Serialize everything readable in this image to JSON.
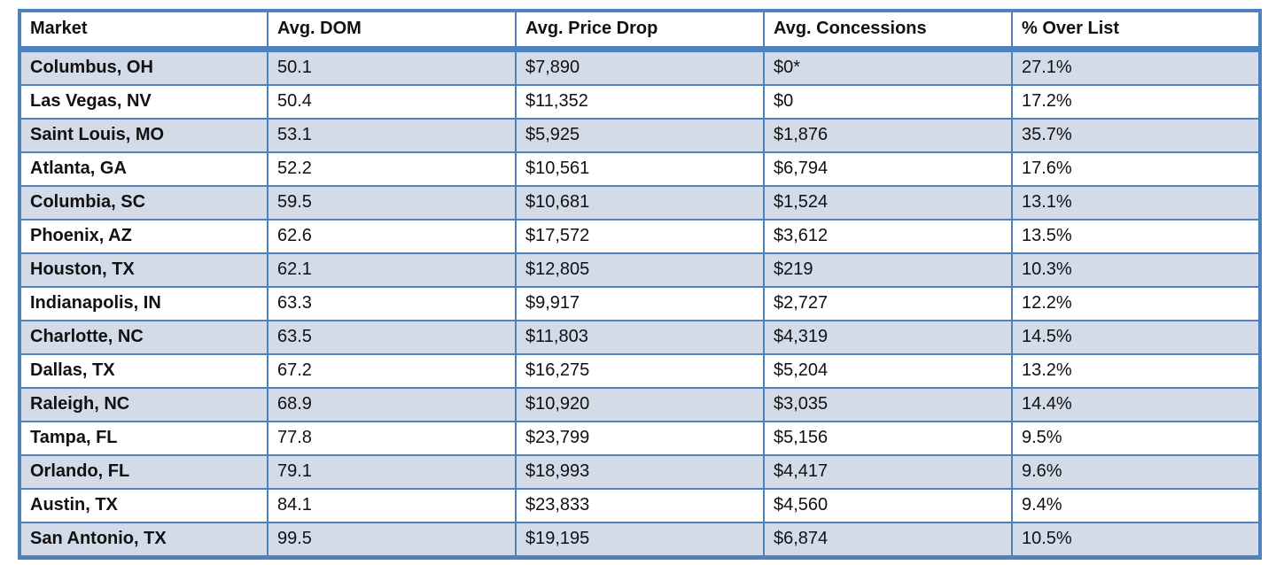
{
  "colors": {
    "accent_border": "#4f81bd",
    "banded_row_fill": "#d3dbe9",
    "header_background": "#ffffff",
    "text": "#111111"
  },
  "table": {
    "columns": [
      "Market",
      "Avg. DOM",
      "Avg. Price Drop",
      "Avg. Concessions",
      "% Over List"
    ],
    "column_keys": [
      "market",
      "avg-dom",
      "avg-price-drop",
      "avg-concessions",
      "pct-over-list"
    ],
    "rows": [
      [
        "Columbus, OH",
        "50.1",
        "$7,890",
        "$0*",
        "27.1%"
      ],
      [
        "Las Vegas, NV",
        "50.4",
        "$11,352",
        "$0",
        "17.2%"
      ],
      [
        "Saint Louis, MO",
        "53.1",
        "$5,925",
        "$1,876",
        "35.7%"
      ],
      [
        "Atlanta, GA",
        "52.2",
        "$10,561",
        "$6,794",
        "17.6%"
      ],
      [
        "Columbia, SC",
        "59.5",
        "$10,681",
        "$1,524",
        "13.1%"
      ],
      [
        "Phoenix, AZ",
        "62.6",
        "$17,572",
        "$3,612",
        "13.5%"
      ],
      [
        "Houston, TX",
        "62.1",
        "$12,805",
        "$219",
        "10.3%"
      ],
      [
        "Indianapolis, IN",
        "63.3",
        "$9,917",
        "$2,727",
        "12.2%"
      ],
      [
        "Charlotte, NC",
        "63.5",
        "$11,803",
        "$4,319",
        "14.5%"
      ],
      [
        "Dallas, TX",
        "67.2",
        "$16,275",
        "$5,204",
        "13.2%"
      ],
      [
        "Raleigh, NC",
        "68.9",
        "$10,920",
        "$3,035",
        "14.4%"
      ],
      [
        "Tampa, FL",
        "77.8",
        "$23,799",
        "$5,156",
        "9.5%"
      ],
      [
        "Orlando, FL",
        "79.1",
        "$18,993",
        "$4,417",
        "9.6%"
      ],
      [
        "Austin, TX",
        "84.1",
        "$23,833",
        "$4,560",
        "9.4%"
      ],
      [
        "San Antonio, TX",
        "99.5",
        "$19,195",
        "$6,874",
        "10.5%"
      ]
    ]
  },
  "chart_data": {
    "type": "table",
    "title": "",
    "columns": [
      "Market",
      "Avg. DOM",
      "Avg. Price Drop",
      "Avg. Concessions",
      "% Over List"
    ],
    "rows": [
      {
        "market": "Columbus, OH",
        "avg_dom": 50.1,
        "avg_price_drop": 7890,
        "avg_concessions": "0*",
        "pct_over_list": 27.1
      },
      {
        "market": "Las Vegas, NV",
        "avg_dom": 50.4,
        "avg_price_drop": 11352,
        "avg_concessions": 0,
        "pct_over_list": 17.2
      },
      {
        "market": "Saint Louis, MO",
        "avg_dom": 53.1,
        "avg_price_drop": 5925,
        "avg_concessions": 1876,
        "pct_over_list": 35.7
      },
      {
        "market": "Atlanta, GA",
        "avg_dom": 52.2,
        "avg_price_drop": 10561,
        "avg_concessions": 6794,
        "pct_over_list": 17.6
      },
      {
        "market": "Columbia, SC",
        "avg_dom": 59.5,
        "avg_price_drop": 10681,
        "avg_concessions": 1524,
        "pct_over_list": 13.1
      },
      {
        "market": "Phoenix, AZ",
        "avg_dom": 62.6,
        "avg_price_drop": 17572,
        "avg_concessions": 3612,
        "pct_over_list": 13.5
      },
      {
        "market": "Houston, TX",
        "avg_dom": 62.1,
        "avg_price_drop": 12805,
        "avg_concessions": 219,
        "pct_over_list": 10.3
      },
      {
        "market": "Indianapolis, IN",
        "avg_dom": 63.3,
        "avg_price_drop": 9917,
        "avg_concessions": 2727,
        "pct_over_list": 12.2
      },
      {
        "market": "Charlotte, NC",
        "avg_dom": 63.5,
        "avg_price_drop": 11803,
        "avg_concessions": 4319,
        "pct_over_list": 14.5
      },
      {
        "market": "Dallas, TX",
        "avg_dom": 67.2,
        "avg_price_drop": 16275,
        "avg_concessions": 5204,
        "pct_over_list": 13.2
      },
      {
        "market": "Raleigh, NC",
        "avg_dom": 68.9,
        "avg_price_drop": 10920,
        "avg_concessions": 3035,
        "pct_over_list": 14.4
      },
      {
        "market": "Tampa, FL",
        "avg_dom": 77.8,
        "avg_price_drop": 23799,
        "avg_concessions": 5156,
        "pct_over_list": 9.5
      },
      {
        "market": "Orlando, FL",
        "avg_dom": 79.1,
        "avg_price_drop": 18993,
        "avg_concessions": 4417,
        "pct_over_list": 9.6
      },
      {
        "market": "Austin, TX",
        "avg_dom": 84.1,
        "avg_price_drop": 23833,
        "avg_concessions": 4560,
        "pct_over_list": 9.4
      },
      {
        "market": "San Antonio, TX",
        "avg_dom": 99.5,
        "avg_price_drop": 19195,
        "avg_concessions": 6874,
        "pct_over_list": 10.5
      }
    ]
  }
}
